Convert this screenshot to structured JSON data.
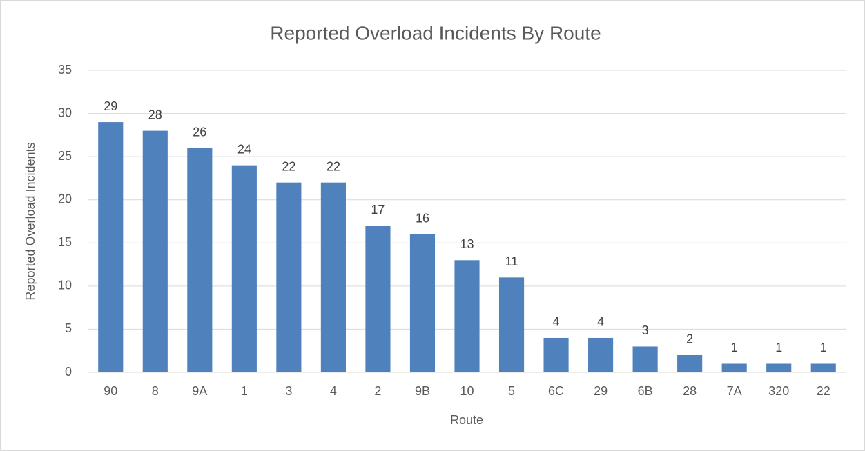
{
  "chart_data": {
    "type": "bar",
    "title": "Reported Overload Incidents By Route",
    "x_label": "Route",
    "y_label": "Reported Overload Incidents",
    "categories": [
      "90",
      "8",
      "9A",
      "1",
      "3",
      "4",
      "2",
      "9B",
      "10",
      "5",
      "6C",
      "29",
      "6B",
      "28",
      "7A",
      "320",
      "22"
    ],
    "values": [
      29,
      28,
      26,
      24,
      22,
      22,
      17,
      16,
      13,
      11,
      4,
      4,
      3,
      2,
      1,
      1,
      1
    ],
    "color": "#4f81bd",
    "ylim": [
      0,
      35
    ],
    "yticks": [
      0,
      5,
      10,
      15,
      20,
      25,
      30,
      35
    ],
    "grid": true
  }
}
